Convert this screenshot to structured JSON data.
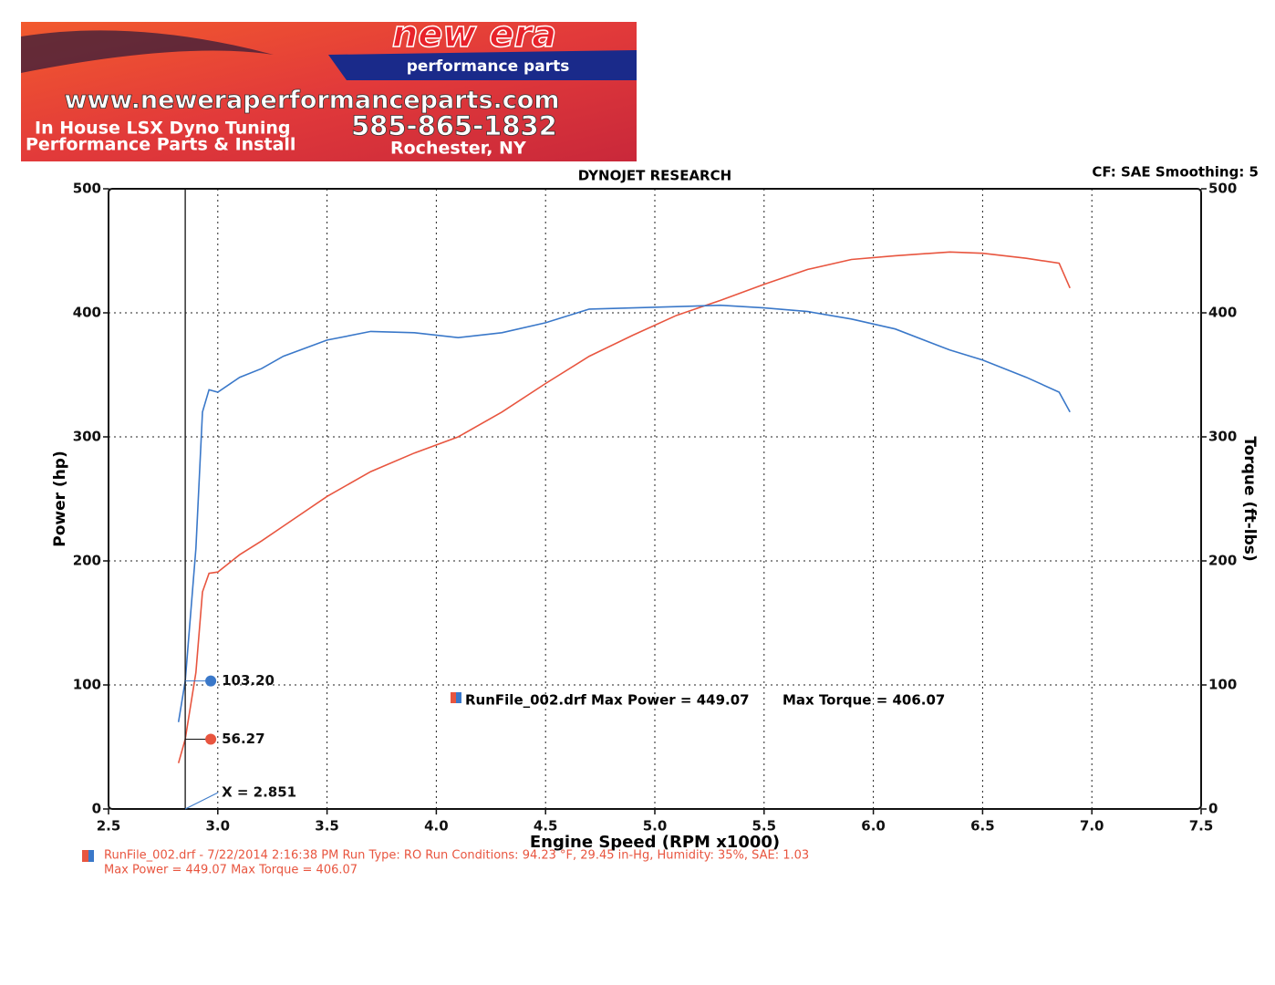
{
  "banner": {
    "brand": "new era",
    "tagline": "performance parts",
    "url": "www.neweraperformanceparts.com",
    "line1": "In House LSX Dyno Tuning",
    "phone": "585-865-1832",
    "line2": "Performance Parts & Install",
    "city": "Rochester, NY"
  },
  "chart_data": {
    "type": "line",
    "title": "DYNOJET RESEARCH",
    "subtitle": "CF: SAE  Smoothing: 5",
    "x_label": "Engine Speed (RPM x1000)",
    "y_label": "Power (hp)",
    "y2_label": "Torque (ft-lbs)",
    "xlim": [
      2.5,
      7.5
    ],
    "xticks": [
      2.5,
      {
        "value": 3,
        "label": "3.0"
      },
      3.5,
      {
        "value": 4,
        "label": "4.0"
      },
      4.5,
      {
        "value": 5,
        "label": "5.0"
      },
      5.5,
      {
        "value": 6,
        "label": "6.0"
      },
      6.5,
      {
        "value": 7,
        "label": "7.0"
      },
      7.5
    ],
    "ylim": [
      0,
      500
    ],
    "yticks": [
      0,
      100,
      200,
      300,
      400,
      500
    ],
    "y2lim": [
      0,
      500
    ],
    "y2ticks": [
      0,
      100,
      200,
      300,
      400,
      500
    ],
    "grid": true,
    "x": [
      2.82,
      2.851,
      2.9,
      2.93,
      2.96,
      3.0,
      3.1,
      3.2,
      3.3,
      3.5,
      3.7,
      3.9,
      4.1,
      4.3,
      4.5,
      4.7,
      4.9,
      5.1,
      5.3,
      5.5,
      5.7,
      5.9,
      6.1,
      6.35,
      6.5,
      6.7,
      6.85,
      6.9
    ],
    "series": [
      {
        "color": "#e8553f",
        "values": [
          37,
          56.27,
          110,
          175,
          190,
          191,
          205,
          216,
          228,
          252,
          272,
          287,
          300,
          320,
          343,
          365,
          382,
          398,
          410,
          423,
          435,
          443,
          446,
          449.07,
          448,
          444,
          440,
          420
        ]
      },
      {
        "color": "#3a78c9",
        "axis": "y2",
        "values": [
          70,
          103.2,
          210,
          320,
          338,
          336,
          348,
          355,
          365,
          378,
          385,
          384,
          380,
          384,
          392,
          403,
          404,
          405,
          406.07,
          404,
          401,
          395,
          387,
          370,
          362,
          348,
          336,
          320
        ]
      }
    ],
    "cursor": {
      "x": {
        "value": 2.851,
        "label": "X = 2.851"
      },
      "values": [
        {
          "value": 103.2,
          "label": "103.20"
        },
        {
          "value": 56.27,
          "label": "56.27"
        }
      ]
    },
    "legend": {
      "run": "RunFile_002.drf Max Power = 449.07",
      "torque": "Max Torque = 406.07"
    },
    "footer": [
      "RunFile_002.drf - 7/22/2014 2:16:38 PM  Run Type: RO  Run Conditions: 94.23 °F, 29.45 in-Hg,  Humidity:  35%, SAE: 1.03",
      "Max Power = 449.07  Max Torque = 406.07"
    ]
  }
}
